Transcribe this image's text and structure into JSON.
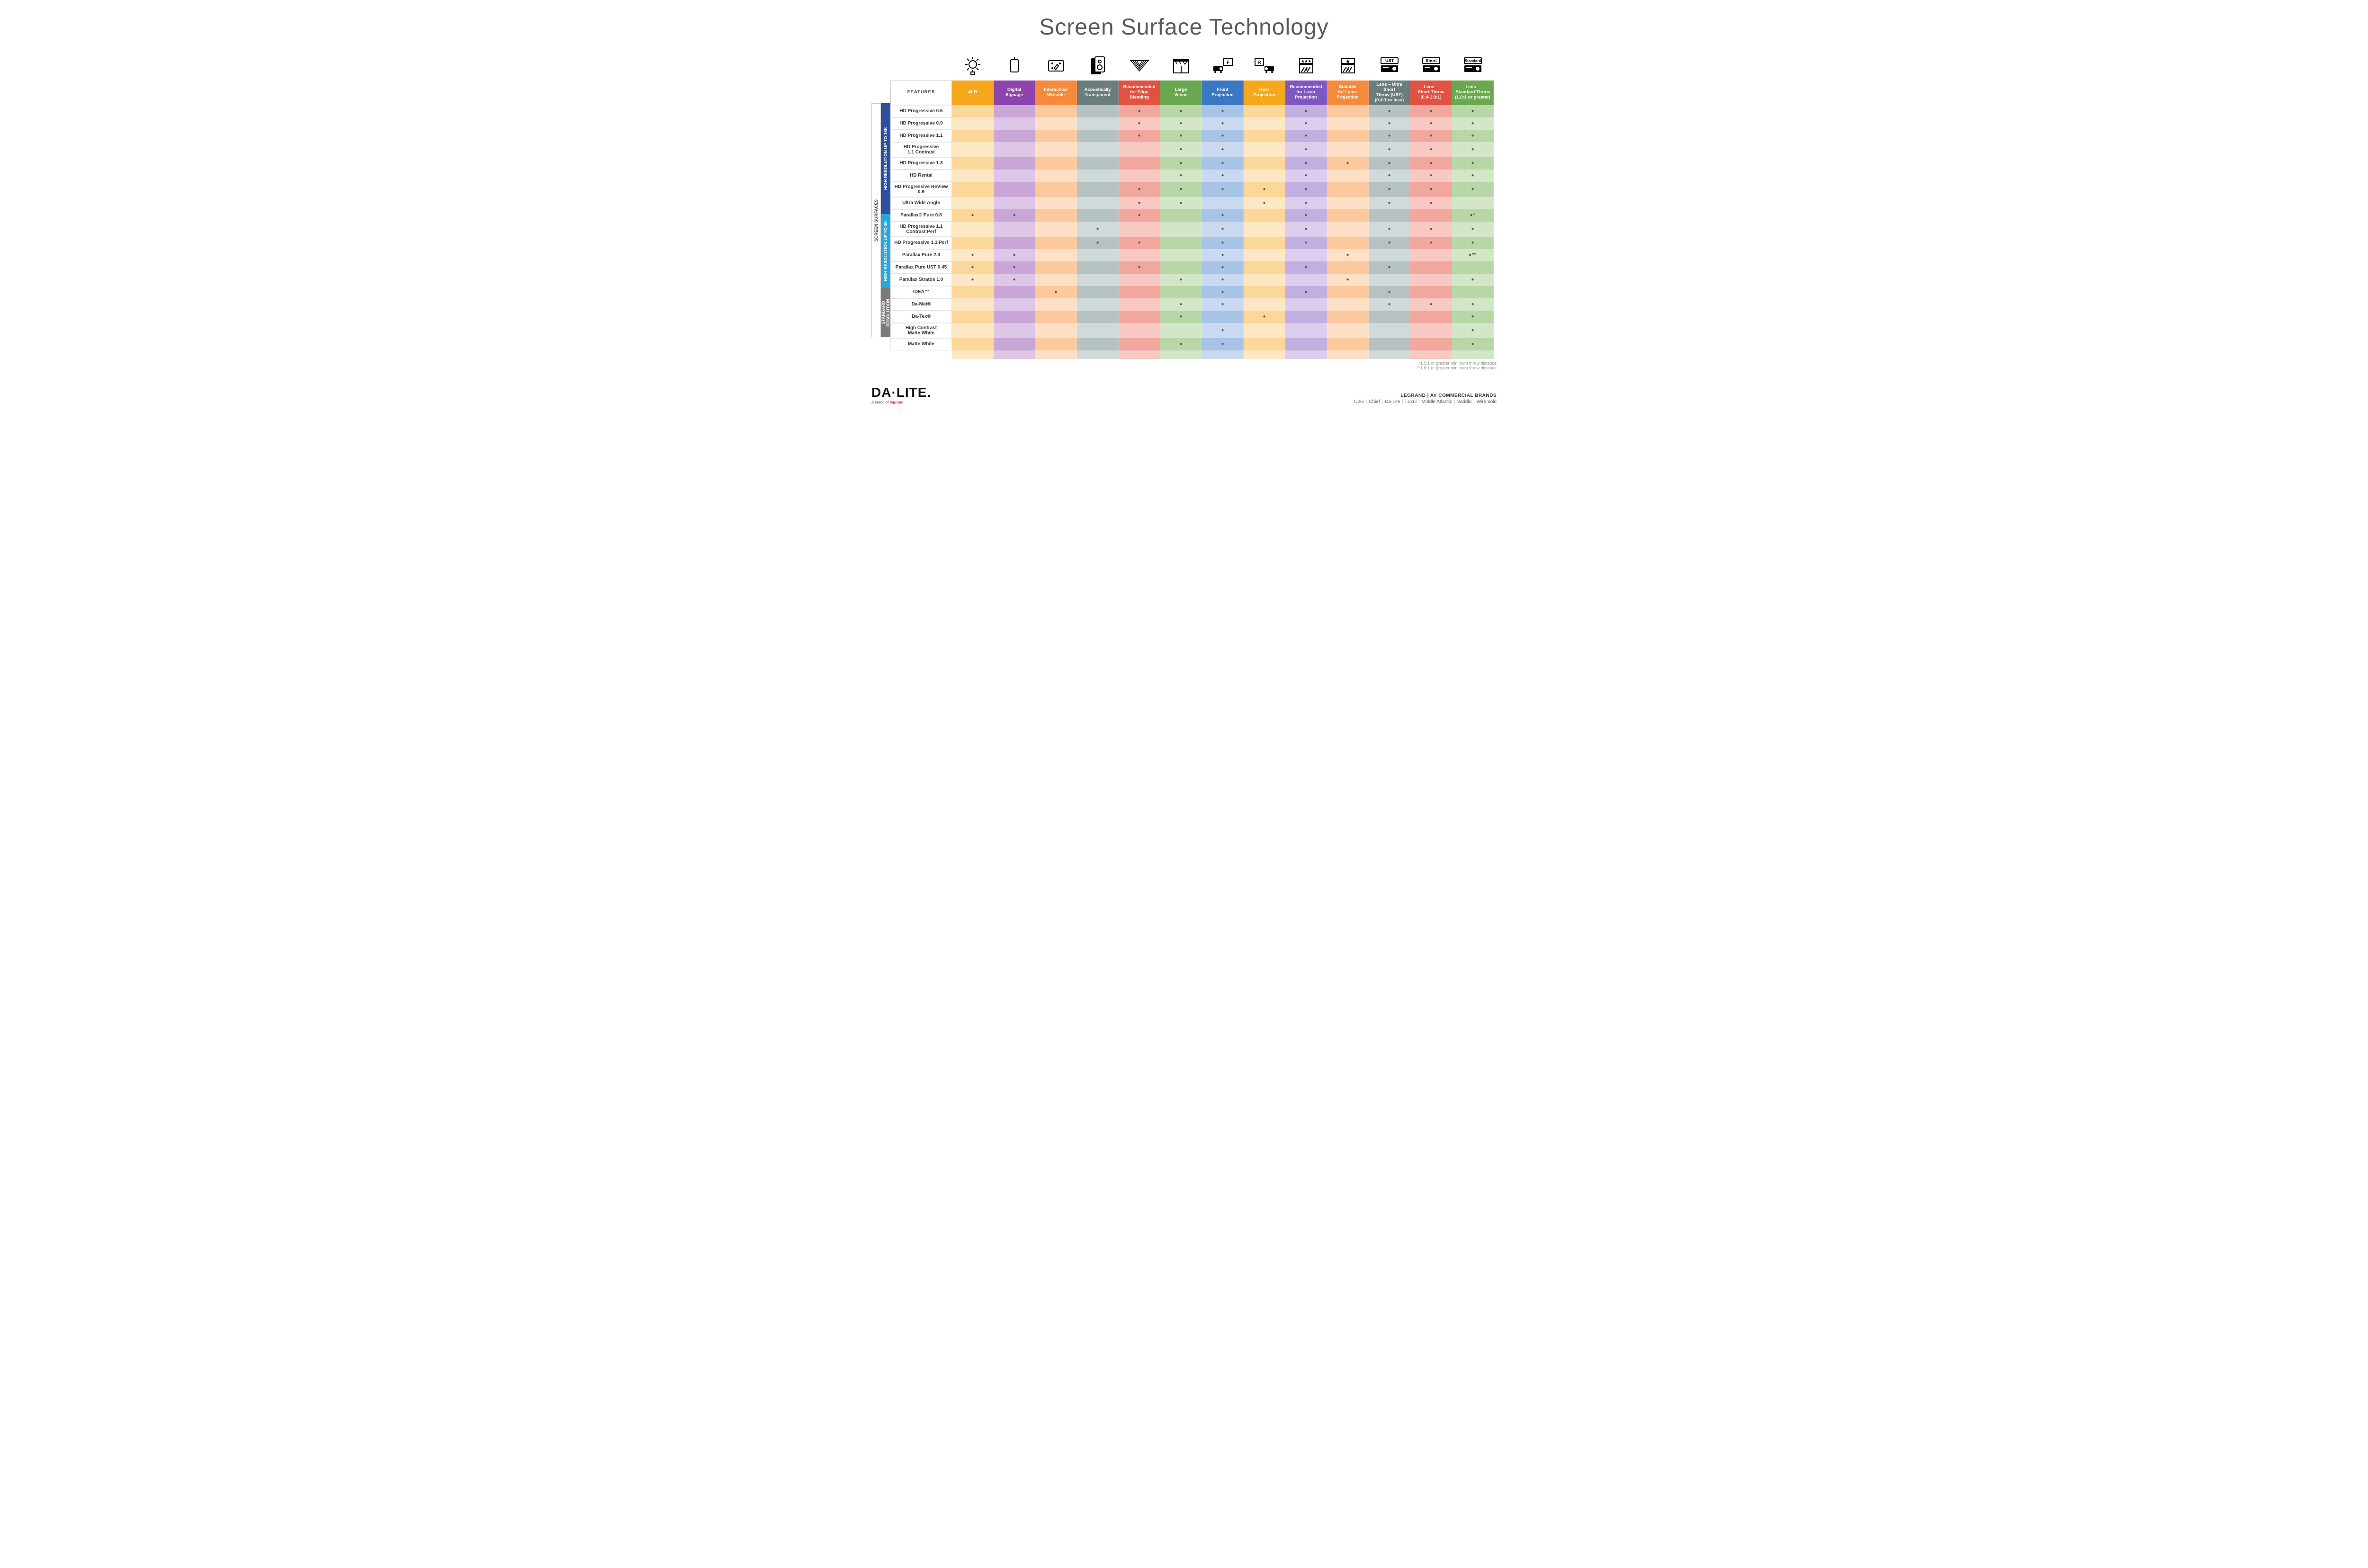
{
  "title": "Screen Surface Technology",
  "layout": {
    "feature_col_width": 130,
    "data_col_width": 88,
    "side_label_width": 20
  },
  "colors": {
    "alr": {
      "head": "#f6a71c",
      "a": "#fcd79a",
      "b": "#fde7c4"
    },
    "signage": {
      "head": "#8e44ad",
      "a": "#c8a7d8",
      "b": "#ddc6e6"
    },
    "interactive": {
      "head": "#f58a3c",
      "a": "#fcc89e",
      "b": "#fde0c6"
    },
    "acoustic": {
      "head": "#6b7d7d",
      "a": "#b6c2c2",
      "b": "#d1dada"
    },
    "edge": {
      "head": "#e15241",
      "a": "#f2a79e",
      "b": "#f7c9c2"
    },
    "venue": {
      "head": "#6aa84f",
      "a": "#b8d6a6",
      "b": "#d4e6c8"
    },
    "front": {
      "head": "#3b78c3",
      "a": "#a7c3e6",
      "b": "#c9daf0"
    },
    "rear": {
      "head": "#f6a71c",
      "a": "#fcd79a",
      "b": "#fde7c4"
    },
    "reclaser": {
      "head": "#7e57c2",
      "a": "#c1afe0",
      "b": "#dacdee"
    },
    "suitlaser": {
      "head": "#f58a3c",
      "a": "#fcc89e",
      "b": "#fde0c6"
    },
    "ust": {
      "head": "#6b7d7d",
      "a": "#b6c2c2",
      "b": "#d1dada"
    },
    "short": {
      "head": "#e15241",
      "a": "#f2a79e",
      "b": "#f7c9c2"
    },
    "standard": {
      "head": "#6aa84f",
      "a": "#b8d6a6",
      "b": "#d4e6c8"
    }
  },
  "columns": [
    {
      "key": "alr",
      "label": "ALR"
    },
    {
      "key": "signage",
      "label": "Digital\nSignage"
    },
    {
      "key": "interactive",
      "label": "Interactive/\nWritable"
    },
    {
      "key": "acoustic",
      "label": "Acoustically\nTransparent"
    },
    {
      "key": "edge",
      "label": "Recommended\nfor Edge\nBlending"
    },
    {
      "key": "venue",
      "label": "Large\nVenue"
    },
    {
      "key": "front",
      "label": "Front\nProjection"
    },
    {
      "key": "rear",
      "label": "Rear\nProjection"
    },
    {
      "key": "reclaser",
      "label": "Recommended\nfor Laser\nProjection"
    },
    {
      "key": "suitlaser",
      "label": "Suitable\nfor Laser\nProjection"
    },
    {
      "key": "ust",
      "label": "Lens – Ultra Short\nThrow (UST)\n(0.4:1 or less)"
    },
    {
      "key": "short",
      "label": "Lens –\nShort Throw\n(0.4-1.0:1)"
    },
    {
      "key": "standard",
      "label": "Lens –\nStandard Throw\n(1.0:1 or greater)"
    }
  ],
  "features_header": "FEATURES",
  "side_labels": {
    "outer": "SCREEN SURFACES",
    "groups": [
      {
        "label": "HIGH RESOLUTION UP TO 16K",
        "bg": "#2c4f9e",
        "span": 9
      },
      {
        "label": "HIGH RESOLUTION UP TO 4K",
        "bg": "#2aa6de",
        "span": 6
      },
      {
        "label": "STANDARD\nRESOLUTION",
        "bg": "#7a7a7a",
        "span": 4
      }
    ]
  },
  "rows": [
    {
      "label": "HD Progressive 0.6",
      "marks": {
        "edge": 1,
        "venue": 1,
        "front": 1,
        "reclaser": 1,
        "ust": 1,
        "short": 1,
        "standard": 1
      }
    },
    {
      "label": "HD Progressive 0.9",
      "marks": {
        "edge": 1,
        "venue": 1,
        "front": 1,
        "reclaser": 1,
        "ust": 1,
        "short": 1,
        "standard": 1
      }
    },
    {
      "label": "HD Progressive 1.1",
      "marks": {
        "edge": 1,
        "venue": 1,
        "front": 1,
        "reclaser": 1,
        "ust": 1,
        "short": 1,
        "standard": 1
      }
    },
    {
      "label": "HD Progressive\n1.1 Contrast",
      "marks": {
        "venue": 1,
        "front": 1,
        "reclaser": 1,
        "ust": 1,
        "short": 1,
        "standard": 1
      }
    },
    {
      "label": "HD Progressive 1.3",
      "marks": {
        "venue": 1,
        "front": 1,
        "reclaser": 1,
        "suitlaser": 1,
        "ust": 1,
        "short": 1,
        "standard": 1
      }
    },
    {
      "label": "HD Rental",
      "marks": {
        "venue": 1,
        "front": 1,
        "reclaser": 1,
        "ust": 1,
        "short": 1,
        "standard": 1
      }
    },
    {
      "label": "HD Progressive ReView 0.9",
      "marks": {
        "edge": 1,
        "venue": 1,
        "front": 1,
        "rear": 1,
        "reclaser": 1,
        "ust": 1,
        "short": 1,
        "standard": 1
      }
    },
    {
      "label": "Ultra Wide Angle",
      "marks": {
        "edge": 1,
        "venue": 1,
        "rear": 1,
        "reclaser": 1,
        "ust": 1,
        "short": 1
      }
    },
    {
      "label": "Parallax® Pure 0.8",
      "marks": {
        "alr": 1,
        "signage": 1,
        "edge": 1,
        "front": 1,
        "reclaser": 1,
        "standard": "*"
      }
    },
    {
      "label": "HD Progressive 1.1\nContrast Perf",
      "marks": {
        "acoustic": 1,
        "front": 1,
        "reclaser": 1,
        "ust": 1,
        "short": 1,
        "standard": 1
      }
    },
    {
      "label": "HD Progressive 1.1 Perf",
      "marks": {
        "acoustic": 1,
        "edge": 1,
        "front": 1,
        "reclaser": 1,
        "ust": 1,
        "short": 1,
        "standard": 1
      }
    },
    {
      "label": "Parallax Pure 2.3",
      "marks": {
        "alr": 1,
        "signage": 1,
        "front": 1,
        "suitlaser": 1,
        "standard": "**"
      }
    },
    {
      "label": "Parallax Pure UST 0.45",
      "marks": {
        "alr": 1,
        "signage": 1,
        "edge": 1,
        "front": 1,
        "reclaser": 1,
        "ust": 1
      }
    },
    {
      "label": "Parallax Stratos 1.0",
      "marks": {
        "alr": 1,
        "signage": 1,
        "venue": 1,
        "front": 1,
        "suitlaser": 1,
        "standard": 1
      }
    },
    {
      "label": "IDEA™",
      "marks": {
        "interactive": 1,
        "front": 1,
        "reclaser": 1,
        "ust": 1
      }
    },
    {
      "label": "Da-Mat®",
      "marks": {
        "venue": 1,
        "front": 1,
        "ust": 1,
        "short": 1,
        "standard": 1
      }
    },
    {
      "label": "Da-Tex®",
      "marks": {
        "venue": 1,
        "rear": 1,
        "standard": 1
      }
    },
    {
      "label": "High Contrast\nMatte White",
      "marks": {
        "front": 1,
        "standard": 1
      }
    },
    {
      "label": "Matte White",
      "marks": {
        "venue": 1,
        "front": 1,
        "standard": 1
      }
    }
  ],
  "footnotes": [
    "*1.5:1 or greater minimum throw distance",
    "**1.8:1 or greater minimum throw distance"
  ],
  "footer": {
    "logo_main": "DA·LITE.",
    "logo_sub_prefix": "A brand of ",
    "logo_sub_brand": "legrand",
    "brands_title": "LEGRAND | AV COMMERCIAL BRANDS",
    "brands_list": [
      "C2G",
      "Chief",
      "Da-Lite",
      "Luxul",
      "Middle Atlantic",
      "Vaddio",
      "Wiremold"
    ]
  },
  "icons": [
    "bulb",
    "signage",
    "writable",
    "speaker",
    "fabric",
    "venue",
    "front",
    "rear",
    "reclaser",
    "suitlaser",
    "ust",
    "short",
    "standard"
  ]
}
